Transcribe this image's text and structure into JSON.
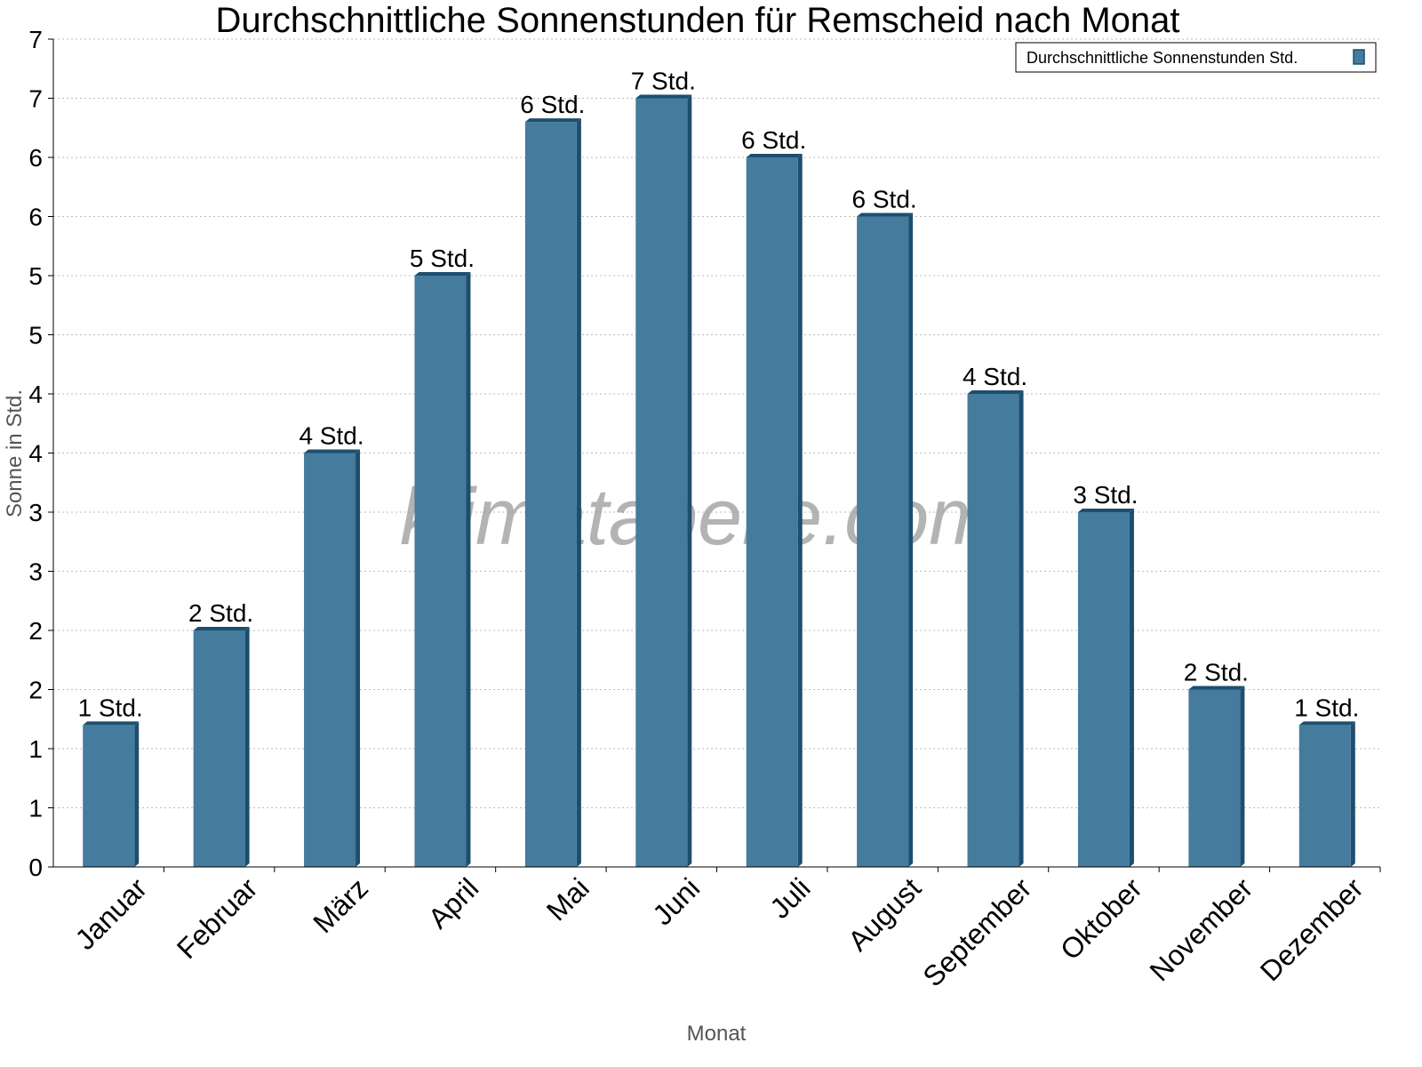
{
  "chart_data": {
    "type": "bar",
    "title": "Durchschnittliche Sonnenstunden für Remscheid nach Monat",
    "xlabel": "Monat",
    "ylabel": "Sonne in Std.",
    "categories": [
      "Januar",
      "Februar",
      "März",
      "April",
      "Mai",
      "Juni",
      "Juli",
      "August",
      "September",
      "Oktober",
      "November",
      "Dezember"
    ],
    "series": [
      {
        "name": "Durchschnittliche Sonnenstunden Std.",
        "values": [
          1.2,
          2.0,
          3.5,
          5.0,
          6.3,
          6.5,
          6.0,
          5.5,
          4.0,
          3.0,
          1.5,
          1.2
        ],
        "labels": [
          "1 Std.",
          "2 Std.",
          "4 Std.",
          "5 Std.",
          "6 Std.",
          "7 Std.",
          "6 Std.",
          "6 Std.",
          "4 Std.",
          "3 Std.",
          "2 Std.",
          "1 Std."
        ]
      }
    ],
    "ylim": [
      0,
      7
    ],
    "yticks": [
      0,
      0.5,
      1,
      1.5,
      2,
      2.5,
      3,
      3.5,
      4,
      4.5,
      5,
      5.5,
      6,
      6.5,
      7
    ],
    "ytick_labels": [
      "0",
      "1",
      "1",
      "2",
      "2",
      "3",
      "3",
      "4",
      "4",
      "5",
      "5",
      "6",
      "6",
      "7",
      "7"
    ],
    "grid": true,
    "legend_position": "top-right",
    "colors": {
      "bar": "#457b9d",
      "bar_side": "#1d4e6e"
    },
    "watermark": "klimatabelle.com"
  }
}
